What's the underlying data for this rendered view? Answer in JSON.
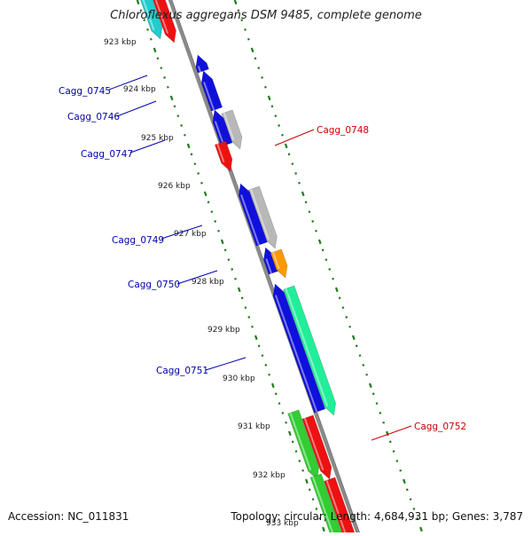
{
  "title": "Chloroflexus aggregans DSM 9485, complete genome",
  "footer": {
    "accession": "Accession: NC_011831",
    "summary": "Topology: circular; Length: 4,684,931 bp; Genes: 3,787"
  },
  "colors": {
    "backbone": "#8a8a8a",
    "tick": "#1f7a1f",
    "label_blue": "#0000aa",
    "label_red": "#cc0000",
    "gene_red": "#ee1111",
    "gene_cyan": "#22cccc",
    "gene_blue": "#1010dd",
    "gene_gray": "#b8b8b8",
    "gene_orange": "#ff9900",
    "gene_aqua": "#22ee99",
    "gene_green": "#33cc33"
  },
  "scale": {
    "unit": "kbp",
    "labels": [
      "923 kbp",
      "924 kbp",
      "925 kbp",
      "926 kbp",
      "927 kbp",
      "928 kbp",
      "929 kbp",
      "930 kbp",
      "931 kbp",
      "932 kbp",
      "933 kbp"
    ]
  },
  "gene_labels": [
    {
      "name": "Cagg_0745",
      "color": "label_blue"
    },
    {
      "name": "Cagg_0746",
      "color": "label_blue"
    },
    {
      "name": "Cagg_0747",
      "color": "label_blue"
    },
    {
      "name": "Cagg_0748",
      "color": "label_red"
    },
    {
      "name": "Cagg_0749",
      "color": "label_blue"
    },
    {
      "name": "Cagg_0750",
      "color": "label_blue"
    },
    {
      "name": "Cagg_0751",
      "color": "label_blue"
    },
    {
      "name": "Cagg_0752",
      "color": "label_red"
    }
  ]
}
